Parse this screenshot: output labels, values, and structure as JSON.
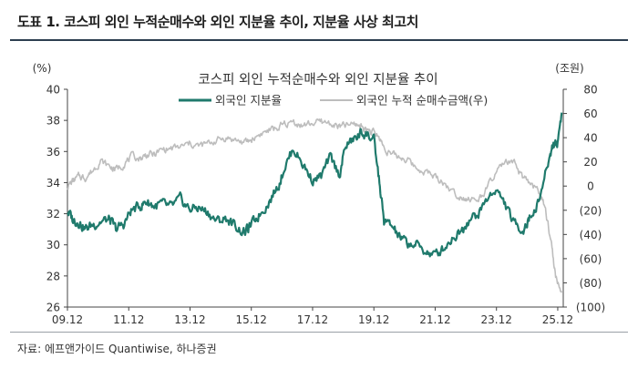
{
  "figure": {
    "title": "도표 1. 코스피 외인 누적순매수와 외인 지분율 추이, 지분율 사상 최고치",
    "source": "자료: 에프앤가이드 Quantiwise, 하나증권"
  },
  "colors": {
    "ownership_line": "#1f7a6c",
    "netbuy_line": "#bdbdbd",
    "header_rule": "#2d3e50",
    "axis_text": "#333333"
  },
  "chart_data": {
    "type": "line",
    "title": "코스피 외인 누적순매수와 외인 지분율 추이",
    "left_axis": {
      "unit": "(%)",
      "min": 26,
      "max": 40,
      "ticks": [
        26,
        28,
        30,
        32,
        34,
        36,
        38,
        40
      ]
    },
    "right_axis": {
      "unit": "(조원)",
      "min": -100,
      "max": 80,
      "ticks": [
        -100,
        -80,
        -60,
        -40,
        -20,
        0,
        20,
        40,
        60,
        80
      ],
      "tick_labels": [
        "(100)",
        "(80)",
        "(60)",
        "(40)",
        "(20)",
        "0",
        "20",
        "40",
        "60",
        "80"
      ]
    },
    "x_ticks": [
      "09.12",
      "11.12",
      "13.12",
      "15.12",
      "17.12",
      "19.12",
      "21.12",
      "23.12",
      "25.12"
    ],
    "x_tick_values": [
      2009.92,
      2011.92,
      2013.92,
      2015.92,
      2017.92,
      2019.92,
      2021.92,
      2023.92,
      2025.92
    ],
    "x_range": [
      2009.92,
      2026.1
    ],
    "legend_position": "top",
    "series": [
      {
        "name": "외국인 지분율",
        "axis": "left",
        "x": [
          2009.92,
          2010.1,
          2010.3,
          2010.5,
          2010.75,
          2011.0,
          2011.3,
          2011.5,
          2011.75,
          2012.0,
          2012.3,
          2012.5,
          2012.75,
          2013.0,
          2013.3,
          2013.6,
          2013.9,
          2014.2,
          2014.5,
          2014.8,
          2015.1,
          2015.4,
          2015.7,
          2015.9,
          2016.2,
          2016.5,
          2016.8,
          2017.0,
          2017.3,
          2017.6,
          2017.9,
          2018.2,
          2018.5,
          2018.8,
          2019.0,
          2019.3,
          2019.5,
          2019.7,
          2019.92,
          2020.1,
          2020.25,
          2020.5,
          2020.75,
          2021.0,
          2021.3,
          2021.6,
          2021.9,
          2022.2,
          2022.5,
          2022.8,
          2023.0,
          2023.3,
          2023.6,
          2023.9,
          2024.2,
          2024.5,
          2024.8,
          2025.0,
          2025.3,
          2025.6,
          2025.75,
          2025.9,
          2026.05
        ],
        "values": [
          32.2,
          31.6,
          31.5,
          31.0,
          31.3,
          31.5,
          31.6,
          31.0,
          31.3,
          32.2,
          32.5,
          32.8,
          32.5,
          32.6,
          32.4,
          32.9,
          32.3,
          32.4,
          32.1,
          31.5,
          31.7,
          31.2,
          30.8,
          31.2,
          32.0,
          32.8,
          33.8,
          35.0,
          36.2,
          35.2,
          34.2,
          34.4,
          35.6,
          34.5,
          36.4,
          36.8,
          37.2,
          37.1,
          36.7,
          34.0,
          31.5,
          31.2,
          30.5,
          30.1,
          30.0,
          29.6,
          29.3,
          29.8,
          30.5,
          31.0,
          31.6,
          31.9,
          32.9,
          33.6,
          32.6,
          31.3,
          31.0,
          31.7,
          32.8,
          35.2,
          36.4,
          36.5,
          38.5
        ]
      },
      {
        "name": "외국인 누적 순매수금액(우)",
        "axis": "right",
        "x": [
          2009.92,
          2010.1,
          2010.3,
          2010.5,
          2010.75,
          2011.0,
          2011.3,
          2011.5,
          2011.75,
          2012.0,
          2012.3,
          2012.5,
          2012.75,
          2013.0,
          2013.3,
          2013.6,
          2013.9,
          2014.2,
          2014.5,
          2014.8,
          2015.1,
          2015.4,
          2015.7,
          2015.9,
          2016.2,
          2016.5,
          2016.8,
          2017.0,
          2017.3,
          2017.6,
          2017.9,
          2018.2,
          2018.5,
          2018.8,
          2019.0,
          2019.3,
          2019.5,
          2019.7,
          2019.92,
          2020.1,
          2020.25,
          2020.5,
          2020.75,
          2021.0,
          2021.3,
          2021.6,
          2021.9,
          2022.2,
          2022.5,
          2022.8,
          2023.0,
          2023.3,
          2023.6,
          2023.9,
          2024.2,
          2024.5,
          2024.8,
          2025.0,
          2025.3,
          2025.5,
          2025.7,
          2025.85,
          2026.05
        ],
        "values": [
          0,
          4,
          8,
          7,
          13,
          21,
          16,
          14,
          18,
          24,
          23,
          26,
          26,
          30,
          31,
          32,
          35,
          33,
          35,
          38,
          40,
          38,
          36,
          38,
          43,
          46,
          48,
          51,
          53,
          50,
          52,
          53,
          52,
          49,
          50,
          51,
          50,
          47,
          44,
          40,
          32,
          26,
          24,
          22,
          15,
          12,
          8,
          3,
          -5,
          -9,
          -10,
          -13,
          -2,
          10,
          20,
          18,
          6,
          2,
          -4,
          -18,
          -45,
          -75,
          -88
        ]
      }
    ]
  }
}
